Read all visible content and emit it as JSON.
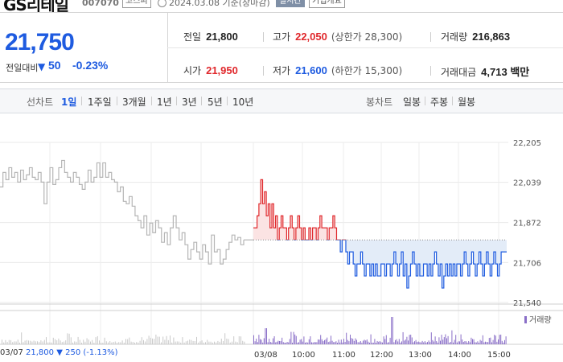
{
  "stock": {
    "name": "GS리테일",
    "code": "007070",
    "market": "코스피",
    "date_basis": "2024.03.08 기준(장마감)",
    "realtime_label": "실시간",
    "company_info_label": "기업개요"
  },
  "quote": {
    "price": "21,750",
    "change_label": "전일대비",
    "change_arrow": "▼",
    "change_value": "50",
    "change_pct": "-0.23%",
    "prev_close_label": "전일",
    "prev_close": "21,800",
    "high_label": "고가",
    "high": "22,050",
    "upper_limit": "(상한가 28,300)",
    "volume_label": "거래량",
    "volume": "216,863",
    "open_label": "시가",
    "open": "21,950",
    "low_label": "저가",
    "low": "21,600",
    "lower_limit": "(하한가 15,300)",
    "amount_label": "거래대금",
    "amount": "4,713 백만"
  },
  "tabs": {
    "line_chart_label": "선차트",
    "periods": [
      "1일",
      "1주일",
      "3개월",
      "1년",
      "3년",
      "5년",
      "10년"
    ],
    "selected": "1일",
    "candle_label": "봉차트",
    "candles": [
      "일봉",
      "주봉",
      "월봉"
    ]
  },
  "chart_data": {
    "type": "line",
    "ylim": [
      21540,
      22205
    ],
    "yticks": [
      22205,
      22039,
      21872,
      21706,
      21540
    ],
    "ytick_labels": [
      "22,205",
      "22,039",
      "21,872",
      "21,706",
      "21,540"
    ],
    "xtick_labels": [
      "03/07",
      "03/08",
      "10:00",
      "11:00",
      "12:00",
      "13:00",
      "14:00",
      "15:00"
    ],
    "baseline": 21800,
    "prev_day": {
      "label": "03/07",
      "values": [
        22020,
        22080,
        22050,
        22100,
        22060,
        22080,
        22040,
        22090,
        22050,
        22070,
        22100,
        22060,
        22050,
        22080,
        22040,
        21950,
        22040,
        22100,
        22030,
        22050,
        22100,
        22130,
        22080,
        22060,
        22040,
        22080,
        22060,
        22030,
        22010,
        22040,
        22090,
        22040,
        22060,
        22120,
        22060,
        22120,
        22060,
        22080,
        22050,
        22040,
        22000,
        22020,
        21960,
        21950,
        21980,
        21940,
        21900,
        21880,
        21850,
        21900,
        21820,
        21870,
        21830,
        21880,
        21850,
        21790,
        21830,
        21780,
        21850,
        21900,
        21850,
        21800,
        21830,
        21780,
        21720,
        21760,
        21790,
        21750,
        21720,
        21780,
        21750,
        21700,
        21820,
        21750,
        21760,
        21700,
        21720,
        21760,
        21790,
        21820,
        21800,
        21810,
        21780,
        21800
      ]
    },
    "today": {
      "label": "03/08",
      "values": [
        21850,
        21850,
        21900,
        21950,
        22050,
        21950,
        22000,
        21900,
        21950,
        21850,
        21950,
        21850,
        21900,
        21800,
        21850,
        21900,
        21850,
        21850,
        21800,
        21850,
        21900,
        21850,
        21800,
        21850,
        21900,
        21850,
        21800,
        21850,
        21800,
        21800,
        21850,
        21800,
        21850,
        21850,
        21800,
        21850,
        21900,
        21850,
        21850,
        21850,
        21800,
        21850,
        21850,
        21900,
        21850,
        21800,
        21800,
        21750,
        21800,
        21800,
        21750,
        21700,
        21750,
        21750,
        21700,
        21650,
        21700,
        21700,
        21750,
        21700,
        21650,
        21700,
        21700,
        21650,
        21700,
        21650,
        21700,
        21650,
        21650,
        21700,
        21700,
        21650,
        21700,
        21700,
        21650,
        21700,
        21750,
        21700,
        21650,
        21700,
        21750,
        21650,
        21700,
        21600,
        21650,
        21700,
        21750,
        21700,
        21650,
        21700,
        21650,
        21650,
        21700,
        21700,
        21650,
        21700,
        21650,
        21700,
        21750,
        21700,
        21650,
        21700,
        21600,
        21650,
        21700,
        21650,
        21700,
        21650,
        21700,
        21650,
        21700,
        21700,
        21650,
        21700,
        21750,
        21700,
        21650,
        21700,
        21750,
        21700,
        21650,
        21700,
        21750,
        21700,
        21650,
        21700,
        21750,
        21700,
        21650,
        21700,
        21750,
        21700,
        21650,
        21700,
        21750,
        21750,
        21750,
        21750
      ]
    },
    "volume_label": "거래량"
  },
  "footer": {
    "date": "03/07",
    "price": "21,800",
    "arrow": "▼",
    "change": "250",
    "pct": "(-1.13%)"
  },
  "colors": {
    "up": "#e0282c",
    "down": "#1e5be0",
    "prev_day_line": "#b5b5b5",
    "up_fill": "#fbe3e3",
    "down_fill": "#e3ecf8",
    "volume": "#8a6fc8"
  }
}
